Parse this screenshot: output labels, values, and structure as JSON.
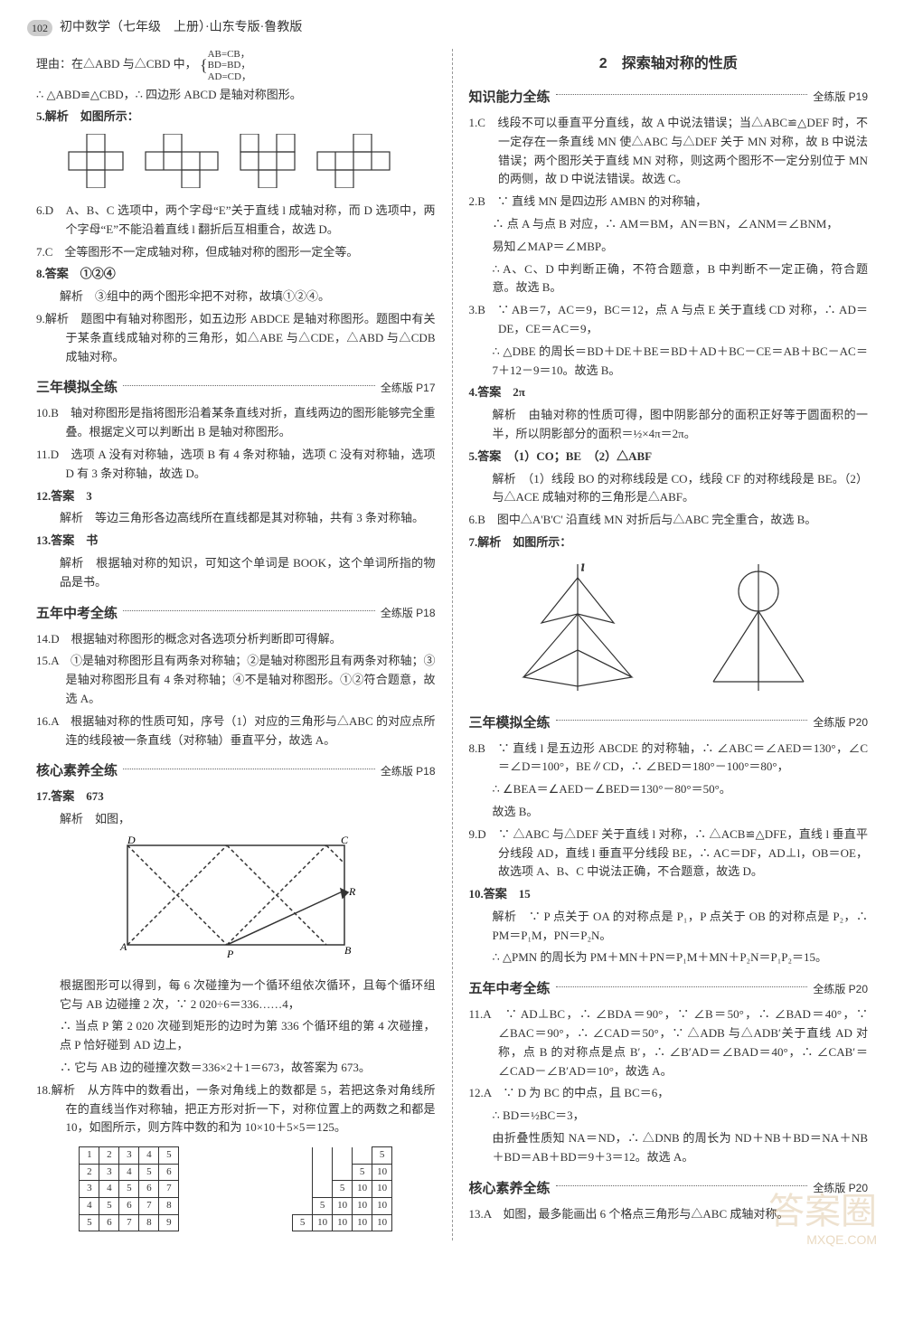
{
  "header": {
    "page_num": "102",
    "title": "初中数学（七年级　上册）·山东专版·鲁教版"
  },
  "left": {
    "reason_line": "理由：在△ABD 与△CBD 中，",
    "cases": [
      "AB=CB，",
      "BD=BD，",
      "AD=CD，"
    ],
    "congruent": "∴ △ABD≌△CBD，∴ 四边形 ABCD 是轴对称图形。",
    "q5": "5.解析　如图所示：",
    "q6": "6.D　A、B、C 选项中，两个字母“E”关于直线 l 成轴对称，而 D 选项中，两个字母“E”不能沿着直线 l 翻折后互相重合，故选 D。",
    "q7": "7.C　全等图形不一定成轴对称，但成轴对称的图形一定全等。",
    "q8a": "8.答案　①②④",
    "q8b": "解析　③组中的两个图形伞把不对称，故填①②④。",
    "q9": "9.解析　题图中有轴对称图形，如五边形 ABDCE 是轴对称图形。题图中有关于某条直线成轴对称的三角形，如△ABE 与△CDE，△ABD 与△CDB 成轴对称。",
    "sec3_title": "三年模拟全练",
    "sec3_ref": "全练版 P17",
    "q10": "10.B　轴对称图形是指将图形沿着某条直线对折，直线两边的图形能够完全重叠。根据定义可以判断出 B 是轴对称图形。",
    "q11": "11.D　选项 A 没有对称轴，选项 B 有 4 条对称轴，选项 C 没有对称轴，选项 D 有 3 条对称轴，故选 D。",
    "q12a": "12.答案　3",
    "q12b": "解析　等边三角形各边高线所在直线都是其对称轴，共有 3 条对称轴。",
    "q13a": "13.答案　书",
    "q13b": "解析　根据轴对称的知识，可知这个单词是 BOOK，这个单词所指的物品是书。",
    "sec5_title": "五年中考全练",
    "sec5_ref": "全练版 P18",
    "q14": "14.D　根据轴对称图形的概念对各选项分析判断即可得解。",
    "q15": "15.A　①是轴对称图形且有两条对称轴；②是轴对称图形且有两条对称轴；③是轴对称图形且有 4 条对称轴；④不是轴对称图形。①②符合题意，故选 A。",
    "q16": "16.A　根据轴对称的性质可知，序号（1）对应的三角形与△ABC 的对应点所连的线段被一条直线（对称轴）垂直平分，故选 A。",
    "seccore_title": "核心素养全练",
    "seccore_ref": "全练版 P18",
    "q17a": "17.答案　673",
    "q17b": "解析　如图，",
    "q17c": "根据图形可以得到，每 6 次碰撞为一个循环组依次循环，且每个循环组它与 AB 边碰撞 2 次，∵ 2 020÷6＝336……4，",
    "q17d": "∴ 当点 P 第 2 020 次碰到矩形的边时为第 336 个循环组的第 4 次碰撞，点 P 恰好碰到 AD 边上，",
    "q17e": "∴ 它与 AB 边的碰撞次数＝336×2＋1＝673，故答案为 673。",
    "q18": "18.解析　从方阵中的数看出，一条对角线上的数都是 5，若把这条对角线所在的直线当作对称轴，把正方形对折一下，对称位置上的两数之和都是 10，如图所示，则方阵中数的和为 10×10＋5×5＝125。",
    "matrix1": [
      [
        "1",
        "2",
        "3",
        "4",
        "5"
      ],
      [
        "2",
        "3",
        "4",
        "5",
        "6"
      ],
      [
        "3",
        "4",
        "5",
        "6",
        "7"
      ],
      [
        "4",
        "5",
        "6",
        "7",
        "8"
      ],
      [
        "5",
        "6",
        "7",
        "8",
        "9"
      ]
    ],
    "matrix2": [
      [
        "",
        "",
        "",
        "",
        "5"
      ],
      [
        "",
        "",
        "",
        "5",
        "10"
      ],
      [
        "",
        "",
        "5",
        "10",
        "10"
      ],
      [
        "",
        "5",
        "10",
        "10",
        "10"
      ],
      [
        "5",
        "10",
        "10",
        "10",
        "10"
      ]
    ]
  },
  "right": {
    "title": "2　探索轴对称的性质",
    "sec_know_title": "知识能力全练",
    "sec_know_ref": "全练版 P19",
    "q1": "1.C　线段不可以垂直平分直线，故 A 中说法错误；当△ABC≌△DEF 时，不一定存在一条直线 MN 使△ABC 与△DEF 关于 MN 对称，故 B 中说法错误；两个图形关于直线 MN 对称，则这两个图形不一定分别位于 MN 的两侧，故 D 中说法错误。故选 C。",
    "q2a": "2.B　∵ 直线 MN 是四边形 AMBN 的对称轴，",
    "q2b": "∴ 点 A 与点 B 对应，∴ AM＝BM，AN＝BN，∠ANM＝∠BNM，",
    "q2c": "易知∠MAP＝∠MBP。",
    "q2d": "∴ A、C、D 中判断正确，不符合题意，B 中判断不一定正确，符合题意。故选 B。",
    "q3a": "3.B　∵ AB＝7，AC＝9，BC＝12，点 A 与点 E 关于直线 CD 对称，∴ AD＝DE，CE＝AC＝9，",
    "q3b": "∴ △DBE 的周长＝BD＋DE＋BE＝BD＋AD＋BC－CE＝AB＋BC－AC＝7＋12－9＝10。故选 B。",
    "q4a": "4.答案　2π",
    "q4b": "解析　由轴对称的性质可得，图中阴影部分的面积正好等于圆面积的一半，所以阴影部分的面积＝½×4π＝2π。",
    "q5a": "5.答案　（1）CO；BE　（2）△ABF",
    "q5b": "解析　（1）线段 BO 的对称线段是 CO，线段 CF 的对称线段是 BE。（2）与△ACE 成轴对称的三角形是△ABF。",
    "q6": "6.B　图中△A'B'C' 沿直线 MN 对折后与△ABC 完全重合，故选 B。",
    "q7": "7.解析　如图所示：",
    "sec3_title": "三年模拟全练",
    "sec3_ref": "全练版 P20",
    "q8a": "8.B　∵ 直线 l 是五边形 ABCDE 的对称轴，∴ ∠ABC＝∠AED＝130°，∠C＝∠D＝100°，BE∥CD，∴ ∠BED＝180°－100°＝80°，",
    "q8b": "∴ ∠BEA＝∠AED－∠BED＝130°－80°＝50°。",
    "q8c": "故选 B。",
    "q9": "9.D　∵ △ABC 与△DEF 关于直线 l 对称，∴ △ACB≌△DFE，直线 l 垂直平分线段 AD，直线 l 垂直平分线段 BE，∴ AC＝DF，AD⊥l，OB＝OE，故选项 A、B、C 中说法正确，不合题意，故选 D。",
    "q10a": "10.答案　15",
    "q10b": "解析　∵ P 点关于 OA 的对称点是 P₁，P 点关于 OB 的对称点是 P₂，∴ PM＝P₁M，PN＝P₂N。",
    "q10c": "∴ △PMN 的周长为 PM＋MN＋PN＝P₁M＋MN＋P₂N＝P₁P₂＝15。",
    "sec5_title": "五年中考全练",
    "sec5_ref": "全练版 P20",
    "q11a": "11.A　∵ AD⊥BC，∴ ∠BDA＝90°，∵ ∠B＝50°，∴ ∠BAD＝40°，∵ ∠BAC＝90°，∴ ∠CAD＝50°，∵ △ADB 与△ADB′关于直线 AD 对称，点 B 的对称点是点 B′，∴ ∠B′AD＝∠BAD＝40°，∴ ∠CAB′＝∠CAD－∠B′AD＝10°，故选 A。",
    "q12a": "12.A　∵ D 为 BC 的中点，且 BC＝6，",
    "q12b": "∴ BD＝½BC＝3，",
    "q12c": "由折叠性质知 NA＝ND，∴ △DNB 的周长为 ND＋NB＋BD＝NA＋NB＋BD＝AB＋BD＝9＋3＝12。故选 A。",
    "seccore_title": "核心素养全练",
    "seccore_ref": "全练版 P20",
    "q13": "13.A　如图，最多能画出 6 个格点三角形与△ABC 成轴对称。"
  },
  "watermark": {
    "main": "答案圈",
    "sub": "MXQE.COM"
  }
}
